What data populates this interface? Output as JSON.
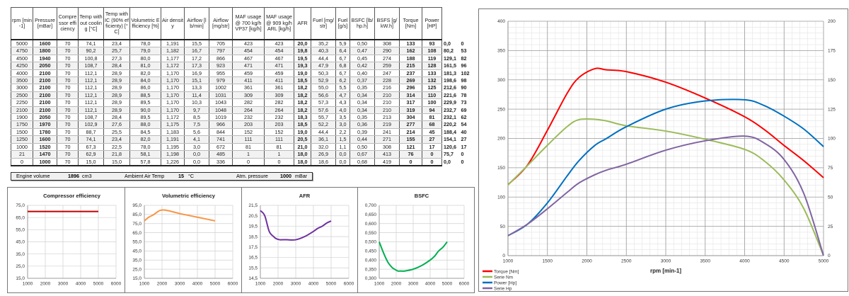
{
  "table": {
    "headers": [
      "rpm [min-1]",
      "Pressure [mBar]",
      "Compressor efficiency",
      "Temp without cooling [°C]",
      "Temp with IC (90% efficienty) [°C]",
      "Volumetric Efficiency [%]",
      "Air density",
      "Airflow [lb/min]",
      "Airflow [mg/str]",
      "MAF usage @ 700 kg/h VP37 [kg/h]",
      "MAF usage @ 909 kg/h ARL [kg/h]",
      "AFR",
      "Fuel [mg/str]",
      "Fuel [g/s]",
      "BSFC [lb/hp.h]",
      "BSFS [g/kW.h]",
      "Torque [Nm]",
      "Power [HP]"
    ],
    "rows": [
      [
        "5000",
        "1600",
        "70",
        "74,1",
        "23,4",
        "78,0",
        "1,191",
        "15,5",
        "705",
        "423",
        "423",
        "20,0",
        "35,2",
        "5,9",
        "0,50",
        "308",
        "133",
        "93",
        "0,0",
        "0"
      ],
      [
        "4750",
        "1800",
        "70",
        "90,2",
        "25,7",
        "79,0",
        "1,182",
        "16,7",
        "797",
        "454",
        "454",
        "19,8",
        "40,3",
        "6,4",
        "0,47",
        "290",
        "162",
        "108",
        "80,2",
        "53"
      ],
      [
        "4500",
        "1940",
        "70",
        "100,8",
        "27,3",
        "80,0",
        "1,177",
        "17,2",
        "866",
        "467",
        "467",
        "19,5",
        "44,4",
        "6,7",
        "0,45",
        "274",
        "188",
        "119",
        "129,1",
        "82"
      ],
      [
        "4250",
        "2050",
        "70",
        "108,7",
        "28,4",
        "81,0",
        "1,172",
        "17,3",
        "923",
        "471",
        "471",
        "19,3",
        "47,9",
        "6,8",
        "0,42",
        "259",
        "215",
        "128",
        "161,5",
        "96"
      ],
      [
        "4000",
        "2100",
        "70",
        "112,1",
        "28,9",
        "82,0",
        "1,170",
        "16,9",
        "955",
        "459",
        "459",
        "19,0",
        "50,3",
        "6,7",
        "0,40",
        "247",
        "237",
        "133",
        "181,3",
        "102"
      ],
      [
        "3500",
        "2100",
        "70",
        "112,1",
        "28,9",
        "84,0",
        "1,170",
        "15,1",
        "979",
        "411",
        "411",
        "18,5",
        "52,9",
        "6,2",
        "0,37",
        "228",
        "269",
        "132",
        "198,6",
        "98"
      ],
      [
        "3000",
        "2100",
        "70",
        "112,1",
        "28,9",
        "86,0",
        "1,170",
        "13,3",
        "1002",
        "361",
        "361",
        "18,2",
        "55,0",
        "5,5",
        "0,35",
        "216",
        "296",
        "125",
        "212,6",
        "90"
      ],
      [
        "2500",
        "2100",
        "70",
        "112,1",
        "28,9",
        "88,5",
        "1,170",
        "11,4",
        "1031",
        "309",
        "309",
        "18,2",
        "56,6",
        "4,7",
        "0,34",
        "210",
        "314",
        "110",
        "221,6",
        "78"
      ],
      [
        "2250",
        "2100",
        "70",
        "112,1",
        "28,9",
        "89,5",
        "1,170",
        "10,3",
        "1043",
        "282",
        "282",
        "18,2",
        "57,3",
        "4,3",
        "0,34",
        "210",
        "317",
        "100",
        "229,9",
        "73"
      ],
      [
        "2100",
        "2100",
        "70",
        "112,1",
        "28,9",
        "90,0",
        "1,170",
        "9,7",
        "1048",
        "264",
        "264",
        "18,2",
        "57,6",
        "4,0",
        "0,34",
        "210",
        "319",
        "94",
        "232,7",
        "69"
      ],
      [
        "1900",
        "2050",
        "70",
        "108,7",
        "28,4",
        "89,5",
        "1,172",
        "8,5",
        "1019",
        "232",
        "232",
        "18,3",
        "55,7",
        "3,5",
        "0,35",
        "213",
        "304",
        "81",
        "232,1",
        "62"
      ],
      [
        "1750",
        "1970",
        "70",
        "102,9",
        "27,6",
        "88,0",
        "1,175",
        "7,5",
        "966",
        "203",
        "203",
        "18,5",
        "52,2",
        "3,0",
        "0,36",
        "219",
        "277",
        "68",
        "220,2",
        "54"
      ],
      [
        "1500",
        "1780",
        "70",
        "88,7",
        "25,5",
        "84,5",
        "1,183",
        "5,6",
        "844",
        "152",
        "152",
        "19,0",
        "44,4",
        "2,2",
        "0,39",
        "241",
        "214",
        "45",
        "188,4",
        "40"
      ],
      [
        "1250",
        "1600",
        "70",
        "74,1",
        "23,4",
        "82,0",
        "1,191",
        "4,1",
        "741",
        "111",
        "111",
        "20,5",
        "36,1",
        "1,5",
        "0,44",
        "271",
        "155",
        "27",
        "154,1",
        "27"
      ],
      [
        "1000",
        "1520",
        "70",
        "67,3",
        "22,5",
        "78,0",
        "1,195",
        "3,0",
        "672",
        "81",
        "81",
        "21,0",
        "32,0",
        "1,1",
        "0,50",
        "308",
        "121",
        "17",
        "120,6",
        "17"
      ],
      [
        "21",
        "1470",
        "70",
        "62,9",
        "21,8",
        "58,1",
        "1,198",
        "0,0",
        "485",
        "1",
        "1",
        "18,0",
        "26,9",
        "0,0",
        "0,67",
        "413",
        "76",
        "0",
        "75,7",
        "0"
      ],
      [
        "0",
        "1000",
        "70",
        "15,0",
        "15,0",
        "57,8",
        "1,226",
        "0,0",
        "336",
        "0",
        "0",
        "18,0",
        "18,6",
        "0,0",
        "0,68",
        "419",
        "0",
        "0",
        "0,0",
        "0"
      ]
    ]
  },
  "info": {
    "engine_volume_label": "Engine volume",
    "engine_volume": "1896",
    "engine_volume_unit": "cm3",
    "ambient_label": "Ambient Air Temp",
    "ambient": "15",
    "ambient_unit": "°C",
    "atm_label": "Atm. pressure",
    "atm": "1000",
    "atm_unit": "mBar"
  },
  "chart_data": [
    {
      "type": "line",
      "title": "Compressor efficiency",
      "xlim": [
        1000,
        6000
      ],
      "xticks": [
        "1000",
        "2000",
        "3000",
        "4000",
        "5000",
        "6000"
      ],
      "ylim": [
        15,
        75
      ],
      "yticks": [
        "15,0",
        "25,0",
        "35,0",
        "45,0",
        "55,0",
        "65,0",
        "75,0"
      ],
      "color": "#c00000",
      "x": [
        1000,
        1250,
        1500,
        1750,
        1900,
        2100,
        2250,
        2500,
        3000,
        3500,
        4000,
        4250,
        4500,
        4750,
        5000
      ],
      "series": [
        {
          "name": "Compressor efficiency",
          "values": [
            70,
            70,
            70,
            70,
            70,
            70,
            70,
            70,
            70,
            70,
            70,
            70,
            70,
            70,
            70
          ]
        }
      ]
    },
    {
      "type": "line",
      "title": "Volumetric efficiency",
      "xlim": [
        1000,
        6000
      ],
      "xticks": [
        "1000",
        "2000",
        "3000",
        "4000",
        "5000",
        "6000"
      ],
      "ylim": [
        15,
        95
      ],
      "yticks": [
        "15,0",
        "25,0",
        "35,0",
        "45,0",
        "55,0",
        "65,0",
        "75,0",
        "85,0",
        "95,0"
      ],
      "color": "#f79646",
      "x": [
        1000,
        1250,
        1500,
        1750,
        1900,
        2100,
        2250,
        2500,
        3000,
        3500,
        4000,
        4250,
        4500,
        4750,
        5000
      ],
      "series": [
        {
          "name": "Volumetric efficiency",
          "values": [
            78,
            82,
            84.5,
            88,
            89.5,
            90,
            89.5,
            88.5,
            86,
            84,
            82,
            81,
            80,
            79,
            78
          ]
        }
      ]
    },
    {
      "type": "line",
      "title": "AFR",
      "xlim": [
        1000,
        6000
      ],
      "xticks": [
        "1000",
        "2000",
        "3000",
        "4000",
        "5000",
        "6000"
      ],
      "ylim": [
        14.5,
        21.5
      ],
      "yticks": [
        "14,5",
        "15,5",
        "16,5",
        "17,5",
        "18,5",
        "19,5",
        "20,5",
        "21,5"
      ],
      "color": "#7030a0",
      "x": [
        1000,
        1250,
        1500,
        1750,
        1900,
        2100,
        2250,
        2500,
        3000,
        3500,
        4000,
        4250,
        4500,
        4750,
        5000
      ],
      "series": [
        {
          "name": "AFR",
          "values": [
            21.0,
            20.5,
            19.0,
            18.5,
            18.3,
            18.2,
            18.2,
            18.2,
            18.2,
            18.5,
            19.0,
            19.3,
            19.5,
            19.8,
            20.0
          ]
        }
      ]
    },
    {
      "type": "line",
      "title": "BSFC",
      "xlim": [
        1000,
        6000
      ],
      "xticks": [
        "1000",
        "2000",
        "3000",
        "4000",
        "5000",
        "6000"
      ],
      "ylim": [
        0.3,
        0.7
      ],
      "yticks": [
        "0,300",
        "0,350",
        "0,400",
        "0,450",
        "0,500",
        "0,550",
        "0,600",
        "0,650",
        "0,700"
      ],
      "color": "#00b050",
      "x": [
        1000,
        1250,
        1500,
        1750,
        1900,
        2100,
        2250,
        2500,
        3000,
        3500,
        4000,
        4250,
        4500,
        4750,
        5000
      ],
      "series": [
        {
          "name": "BSFC",
          "values": [
            0.5,
            0.44,
            0.39,
            0.36,
            0.35,
            0.34,
            0.34,
            0.34,
            0.35,
            0.37,
            0.4,
            0.42,
            0.45,
            0.47,
            0.5
          ]
        }
      ]
    },
    {
      "type": "line",
      "title": "",
      "xlabel": "rpm [min-1]",
      "xlim": [
        1000,
        5000
      ],
      "xticks": [
        "1000",
        "1500",
        "2000",
        "2500",
        "3000",
        "3500",
        "4000",
        "4500",
        "5000"
      ],
      "ylim": [
        0,
        400
      ],
      "yticks": [
        "0",
        "50",
        "100",
        "150",
        "200",
        "250",
        "300",
        "350",
        "400"
      ],
      "y2lim": [
        0,
        200
      ],
      "y2ticks": [
        "0",
        "25",
        "50",
        "75",
        "100",
        "125",
        "150",
        "175",
        "200"
      ],
      "legend": "bottom-left",
      "x": [
        1000,
        1250,
        1500,
        1750,
        1900,
        2100,
        2250,
        2500,
        3000,
        3500,
        4000,
        4250,
        4500,
        4750,
        5000
      ],
      "series": [
        {
          "name": "Torque [Nm]",
          "axis": "left",
          "color": "#ff0000",
          "values": [
            121,
            155,
            214,
            277,
            304,
            319,
            317,
            314,
            296,
            269,
            237,
            215,
            188,
            162,
            133
          ]
        },
        {
          "name": "Serie Nm",
          "axis": "left",
          "color": "#9bbb59",
          "values": [
            120.6,
            154.1,
            188.4,
            220.2,
            232.1,
            232.7,
            229.9,
            221.6,
            212.6,
            198.6,
            181.3,
            161.5,
            129.1,
            80.2,
            0
          ]
        },
        {
          "name": "Power [Hp]",
          "axis": "right",
          "color": "#0070c0",
          "values": [
            17,
            27,
            45,
            68,
            81,
            94,
            100,
            110,
            125,
            132,
            133,
            128,
            119,
            108,
            93
          ]
        },
        {
          "name": "Serie Hp",
          "axis": "right",
          "color": "#8064a2",
          "values": [
            17,
            27,
            40,
            54,
            62,
            69,
            73,
            78,
            90,
            98,
            102,
            96,
            82,
            53,
            0
          ]
        }
      ]
    }
  ]
}
